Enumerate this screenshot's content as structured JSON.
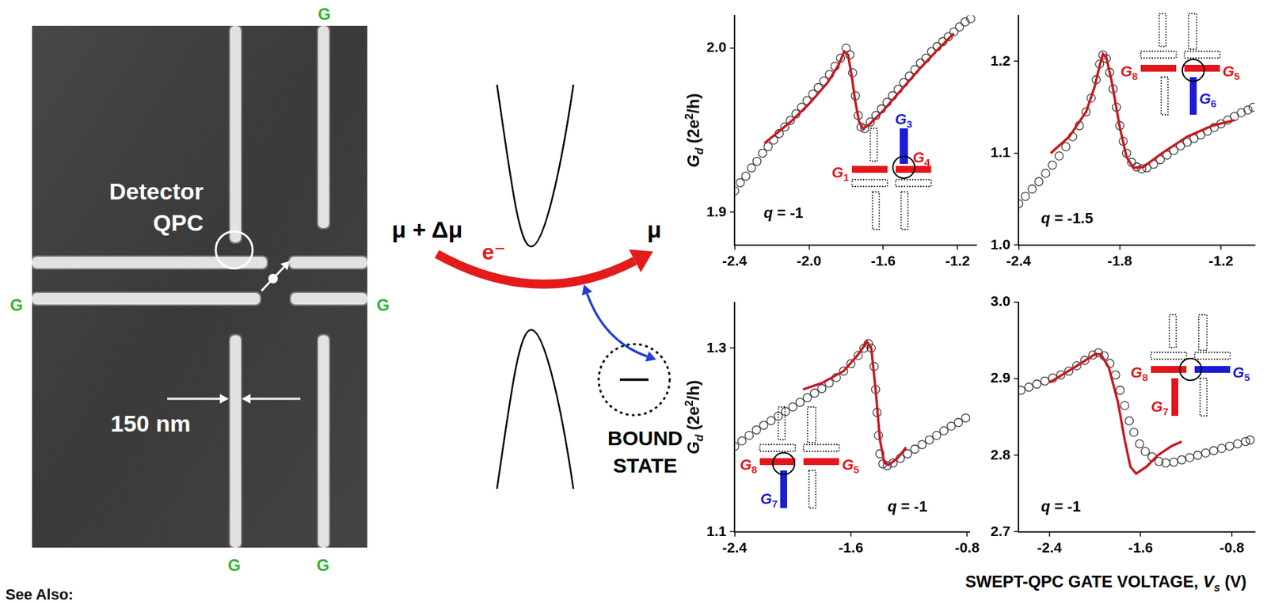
{
  "sem_image": {
    "detector_label": [
      "Detector",
      "QPC"
    ],
    "gate_labels": [
      "G",
      "G",
      "G",
      "G",
      "G"
    ],
    "scale_bar": "150 nm"
  },
  "schematic": {
    "source": "μ + Δμ",
    "drain": "μ",
    "electron": "e⁻",
    "bound_state": [
      "BOUND",
      "STATE"
    ]
  },
  "footer": "See Also:",
  "x_label": [
    {
      "text": "SWEPT-QPC GATE VOLTAGE, "
    },
    {
      "text": "V",
      "italic": true
    },
    {
      "text": "s",
      "italic": true,
      "sub": true
    },
    {
      "text": " (V)"
    }
  ],
  "chart_data": [
    {
      "type": "scatter",
      "y_label": [
        {
          "text": "G",
          "italic": true
        },
        {
          "text": "d",
          "italic": true,
          "sub": true
        },
        {
          "text": " (2e"
        },
        {
          "text": "2",
          "sup": true
        },
        {
          "text": "/h)"
        }
      ],
      "annotation": [
        {
          "text": "q",
          "italic": true
        },
        {
          "text": " = -1"
        }
      ],
      "xlim": [
        -2.4,
        -1.1
      ],
      "xticks": [
        -2.4,
        {
          "value": -2,
          "label": "-2.0"
        },
        -1.6,
        -1.2
      ],
      "ylim": [
        1.88,
        2.02
      ],
      "yticks": [
        1.9,
        {
          "value": 2,
          "label": "2.0"
        }
      ],
      "grid": false,
      "gates": [
        {
          "label": [
            {
              "text": "G",
              "italic": true
            },
            {
              "text": "1",
              "sub": true
            }
          ],
          "color": "#e3151b"
        },
        {
          "label": [
            {
              "text": "G",
              "italic": true
            },
            {
              "text": "3",
              "sub": true
            }
          ],
          "color": "#1c1cd4"
        },
        {
          "label": [
            {
              "text": "G",
              "italic": true
            },
            {
              "text": "4",
              "sub": true
            }
          ],
          "color": "#e3151b"
        }
      ],
      "series": [
        {
          "color": "#3a3a3a",
          "marker": "circle",
          "x": [
            -2.4,
            -2.37,
            -2.34,
            -2.31,
            -2.28,
            -2.25,
            -2.22,
            -2.19,
            -2.16,
            -2.13,
            -2.1,
            -2.07,
            -2.04,
            -2.01,
            -1.98,
            -1.95,
            -1.92,
            -1.89,
            -1.86,
            -1.83,
            -1.8,
            -1.78,
            -1.765,
            -1.75,
            -1.735,
            -1.72,
            -1.7,
            -1.67,
            -1.64,
            -1.61,
            -1.58,
            -1.55,
            -1.52,
            -1.49,
            -1.46,
            -1.43,
            -1.4,
            -1.37,
            -1.34,
            -1.31,
            -1.28,
            -1.25,
            -1.22,
            -1.19,
            -1.16,
            -1.13
          ],
          "values": [
            1.913,
            1.918,
            1.922,
            1.927,
            1.931,
            1.936,
            1.94,
            1.944,
            1.948,
            1.952,
            1.956,
            1.96,
            1.964,
            1.968,
            1.972,
            1.976,
            1.98,
            1.984,
            1.989,
            1.994,
            2.0,
            1.996,
            1.985,
            1.971,
            1.959,
            1.952,
            1.951,
            1.955,
            1.959,
            1.963,
            1.967,
            1.971,
            1.975,
            1.979,
            1.983,
            1.987,
            1.991,
            1.994,
            1.998,
            2.001,
            2.004,
            2.007,
            2.01,
            2.013,
            2.016,
            2.018
          ]
        },
        {
          "type": "line",
          "color": "#c8161d",
          "line_style": "solid",
          "x": [
            -2.24,
            -2.1,
            -2.0,
            -1.9,
            -1.84,
            -1.81,
            -1.79,
            -1.77,
            -1.75,
            -1.73,
            -1.71,
            -1.68,
            -1.6,
            -1.5,
            -1.4,
            -1.3,
            -1.22
          ],
          "values": [
            1.942,
            1.955,
            1.966,
            1.979,
            1.99,
            1.998,
            1.996,
            1.983,
            1.967,
            1.955,
            1.951,
            1.953,
            1.962,
            1.975,
            1.988,
            2.0,
            2.009
          ]
        }
      ]
    },
    {
      "type": "scatter",
      "annotation": [
        {
          "text": "q",
          "italic": true
        },
        {
          "text": " = -1.5"
        }
      ],
      "xlim": [
        -2.4,
        -1.0
      ],
      "xticks": [
        -2.4,
        -1.8,
        -1.2
      ],
      "ylim": [
        1.0,
        1.25
      ],
      "yticks": [
        {
          "value": 1,
          "label": "1.0"
        },
        1.1,
        1.2
      ],
      "grid": false,
      "gates": [
        {
          "label": [
            {
              "text": "G",
              "italic": true
            },
            {
              "text": "8",
              "sub": true
            }
          ],
          "color": "#e3151b"
        },
        {
          "label": [
            {
              "text": "G",
              "italic": true
            },
            {
              "text": "5",
              "sub": true
            }
          ],
          "color": "#e3151b"
        },
        {
          "label": [
            {
              "text": "G",
              "italic": true
            },
            {
              "text": "6",
              "sub": true
            }
          ],
          "color": "#1c1cd4"
        }
      ],
      "series": [
        {
          "color": "#3a3a3a",
          "marker": "circle",
          "x": [
            -2.4,
            -2.36,
            -2.32,
            -2.28,
            -2.24,
            -2.2,
            -2.16,
            -2.12,
            -2.08,
            -2.04,
            -2.0,
            -1.97,
            -1.94,
            -1.92,
            -1.9,
            -1.88,
            -1.86,
            -1.84,
            -1.82,
            -1.8,
            -1.78,
            -1.76,
            -1.73,
            -1.7,
            -1.67,
            -1.64,
            -1.6,
            -1.56,
            -1.52,
            -1.48,
            -1.44,
            -1.4,
            -1.36,
            -1.32,
            -1.28,
            -1.24,
            -1.2,
            -1.16,
            -1.12,
            -1.08,
            -1.04,
            -1.01
          ],
          "values": [
            1.045,
            1.053,
            1.061,
            1.069,
            1.078,
            1.087,
            1.097,
            1.107,
            1.118,
            1.13,
            1.145,
            1.16,
            1.18,
            1.197,
            1.207,
            1.203,
            1.188,
            1.17,
            1.15,
            1.13,
            1.113,
            1.1,
            1.09,
            1.085,
            1.083,
            1.084,
            1.088,
            1.093,
            1.098,
            1.103,
            1.108,
            1.112,
            1.116,
            1.12,
            1.124,
            1.128,
            1.132,
            1.136,
            1.14,
            1.144,
            1.147,
            1.15
          ]
        },
        {
          "type": "line",
          "color": "#c8161d",
          "line_style": "solid",
          "x": [
            -2.21,
            -2.1,
            -2.0,
            -1.95,
            -1.92,
            -1.9,
            -1.88,
            -1.85,
            -1.8,
            -1.76,
            -1.72,
            -1.66,
            -1.55,
            -1.4,
            -1.25,
            -1.12
          ],
          "values": [
            1.1,
            1.118,
            1.145,
            1.172,
            1.195,
            1.208,
            1.204,
            1.18,
            1.128,
            1.096,
            1.084,
            1.085,
            1.1,
            1.118,
            1.13,
            1.136
          ]
        }
      ]
    },
    {
      "type": "scatter",
      "y_label": [
        {
          "text": "G",
          "italic": true
        },
        {
          "text": "d",
          "italic": true,
          "sub": true
        },
        {
          "text": " (2e"
        },
        {
          "text": "2",
          "sup": true
        },
        {
          "text": "/h)"
        }
      ],
      "annotation": [
        {
          "text": "q",
          "italic": true
        },
        {
          "text": " = -1"
        }
      ],
      "xlim": [
        -2.4,
        -0.78
      ],
      "xticks": [
        -2.4,
        -1.6,
        -0.8
      ],
      "ylim": [
        1.1,
        1.35
      ],
      "yticks": [
        1.1,
        1.3
      ],
      "grid": false,
      "gates": [
        {
          "label": [
            {
              "text": "G",
              "italic": true
            },
            {
              "text": "8",
              "sub": true
            }
          ],
          "color": "#e3151b"
        },
        {
          "label": [
            {
              "text": "G",
              "italic": true
            },
            {
              "text": "5",
              "sub": true
            }
          ],
          "color": "#e3151b"
        },
        {
          "label": [
            {
              "text": "G",
              "italic": true
            },
            {
              "text": "7",
              "sub": true
            }
          ],
          "color": "#1c1cd4"
        }
      ],
      "series": [
        {
          "color": "#3a3a3a",
          "marker": "circle",
          "x": [
            -2.4,
            -2.35,
            -2.3,
            -2.25,
            -2.2,
            -2.15,
            -2.1,
            -2.05,
            -2.0,
            -1.95,
            -1.9,
            -1.85,
            -1.8,
            -1.75,
            -1.7,
            -1.65,
            -1.6,
            -1.55,
            -1.51,
            -1.48,
            -1.46,
            -1.44,
            -1.43,
            -1.42,
            -1.41,
            -1.4,
            -1.38,
            -1.35,
            -1.31,
            -1.26,
            -1.21,
            -1.16,
            -1.11,
            -1.06,
            -1.01,
            -0.96,
            -0.91,
            -0.86,
            -0.81
          ],
          "values": [
            1.193,
            1.199,
            1.205,
            1.211,
            1.216,
            1.221,
            1.226,
            1.231,
            1.236,
            1.241,
            1.246,
            1.251,
            1.256,
            1.262,
            1.268,
            1.275,
            1.283,
            1.292,
            1.3,
            1.305,
            1.3,
            1.28,
            1.255,
            1.23,
            1.205,
            1.185,
            1.174,
            1.172,
            1.175,
            1.18,
            1.185,
            1.19,
            1.195,
            1.2,
            1.205,
            1.21,
            1.215,
            1.219,
            1.224
          ]
        },
        {
          "type": "line",
          "color": "#c8161d",
          "line_style": "solid",
          "x": [
            -1.93,
            -1.8,
            -1.65,
            -1.55,
            -1.49,
            -1.46,
            -1.43,
            -1.4,
            -1.37,
            -1.34,
            -1.28,
            -1.22
          ],
          "values": [
            1.255,
            1.262,
            1.275,
            1.293,
            1.307,
            1.3,
            1.255,
            1.2,
            1.175,
            1.173,
            1.18,
            1.192
          ]
        }
      ]
    },
    {
      "type": "scatter",
      "annotation": [
        {
          "text": "q",
          "italic": true
        },
        {
          "text": " = -1"
        }
      ],
      "xlim": [
        -2.67,
        -0.6
      ],
      "xticks": [
        -2.4,
        -1.6,
        -0.8
      ],
      "ylim": [
        2.7,
        3.0
      ],
      "yticks": [
        2.7,
        2.8,
        2.9,
        {
          "value": 3,
          "label": "3.0"
        }
      ],
      "grid": false,
      "gates": [
        {
          "label": [
            {
              "text": "G",
              "italic": true
            },
            {
              "text": "8",
              "sub": true
            }
          ],
          "color": "#e3151b"
        },
        {
          "label": [
            {
              "text": "G",
              "italic": true
            },
            {
              "text": "5",
              "sub": true
            }
          ],
          "color": "#1c1cd4"
        },
        {
          "label": [
            {
              "text": "G",
              "italic": true
            },
            {
              "text": "7",
              "sub": true
            }
          ],
          "color": "#e3151b"
        }
      ],
      "series": [
        {
          "color": "#3a3a3a",
          "marker": "circle",
          "x": [
            -2.65,
            -2.58,
            -2.51,
            -2.44,
            -2.37,
            -2.3,
            -2.23,
            -2.16,
            -2.09,
            -2.02,
            -1.97,
            -1.92,
            -1.87,
            -1.82,
            -1.78,
            -1.74,
            -1.7,
            -1.66,
            -1.61,
            -1.56,
            -1.5,
            -1.44,
            -1.38,
            -1.31,
            -1.24,
            -1.17,
            -1.1,
            -1.03,
            -0.96,
            -0.89,
            -0.82,
            -0.75,
            -0.68,
            -0.64
          ],
          "values": [
            2.885,
            2.889,
            2.893,
            2.897,
            2.901,
            2.905,
            2.91,
            2.917,
            2.924,
            2.931,
            2.934,
            2.93,
            2.92,
            2.905,
            2.885,
            2.865,
            2.845,
            2.83,
            2.815,
            2.805,
            2.798,
            2.792,
            2.79,
            2.791,
            2.794,
            2.797,
            2.8,
            2.803,
            2.806,
            2.809,
            2.812,
            2.815,
            2.818,
            2.82
          ]
        },
        {
          "type": "line",
          "color": "#c8161d",
          "line_style": "solid",
          "x": [
            -2.4,
            -2.2,
            -2.0,
            -1.95,
            -1.88,
            -1.8,
            -1.74,
            -1.69,
            -1.64,
            -1.55,
            -1.45,
            -1.33,
            -1.24
          ],
          "values": [
            2.895,
            2.913,
            2.932,
            2.932,
            2.915,
            2.87,
            2.82,
            2.785,
            2.776,
            2.785,
            2.8,
            2.812,
            2.818
          ]
        }
      ]
    }
  ]
}
